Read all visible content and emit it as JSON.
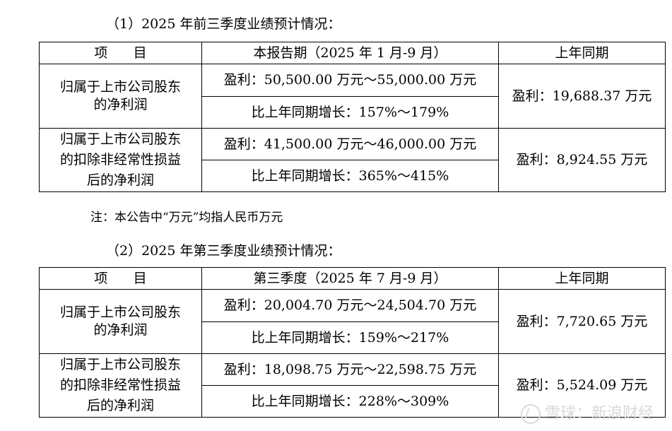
{
  "section1": {
    "heading": "（1）2025 年前三季度业绩预计情况：",
    "headers": [
      "项      目",
      "本报告期（2025 年 1 月-9 月）",
      "上年同期"
    ],
    "rows": [
      {
        "item": "归属于上市公司股东的净利润",
        "item_lines": [
          "归属于上市公司股东",
          "的净利润"
        ],
        "profit": "盈利：50,500.00 万元～55,000.00 万元",
        "growth": "比上年同期增长：157%～179%",
        "prior": "盈利：19,688.37 万元"
      },
      {
        "item": "归属于上市公司股东的扣除非经常性损益后的净利润",
        "item_lines": [
          "归属于上市公司股东",
          "的扣除非经常性损益",
          "后的净利润"
        ],
        "profit": "盈利：41,500.00 万元～46,000.00 万元",
        "growth": "比上年同期增长：365%～415%",
        "prior": "盈利：8,924.55 万元"
      }
    ]
  },
  "note": "注：本公告中“万元”均指人民币万元",
  "section2": {
    "heading": "（2）2025 年第三季度业绩预计情况：",
    "headers": [
      "项      目",
      "第三季度（2025 年 7 月-9 月）",
      "上年同期"
    ],
    "rows": [
      {
        "item": "归属于上市公司股东的净利润",
        "item_lines": [
          "归属于上市公司股东",
          "的净利润"
        ],
        "profit": "盈利：20,004.70 万元～24,504.70 万元",
        "growth": "比上年同期增长：159%～217%",
        "prior": "盈利：7,720.65 万元"
      },
      {
        "item": "归属于上市公司股东的扣除非经常性损益后的净利润",
        "item_lines": [
          "归属于上市公司股东",
          "的扣除非经常性损益",
          "后的净利润"
        ],
        "profit": "盈利：18,098.75 万元～22,598.75 万元",
        "growth": "比上年同期增长：228%～309%",
        "prior": "盈利：5,524.09 万元"
      }
    ]
  },
  "watermark": "雪球：新浪财经"
}
